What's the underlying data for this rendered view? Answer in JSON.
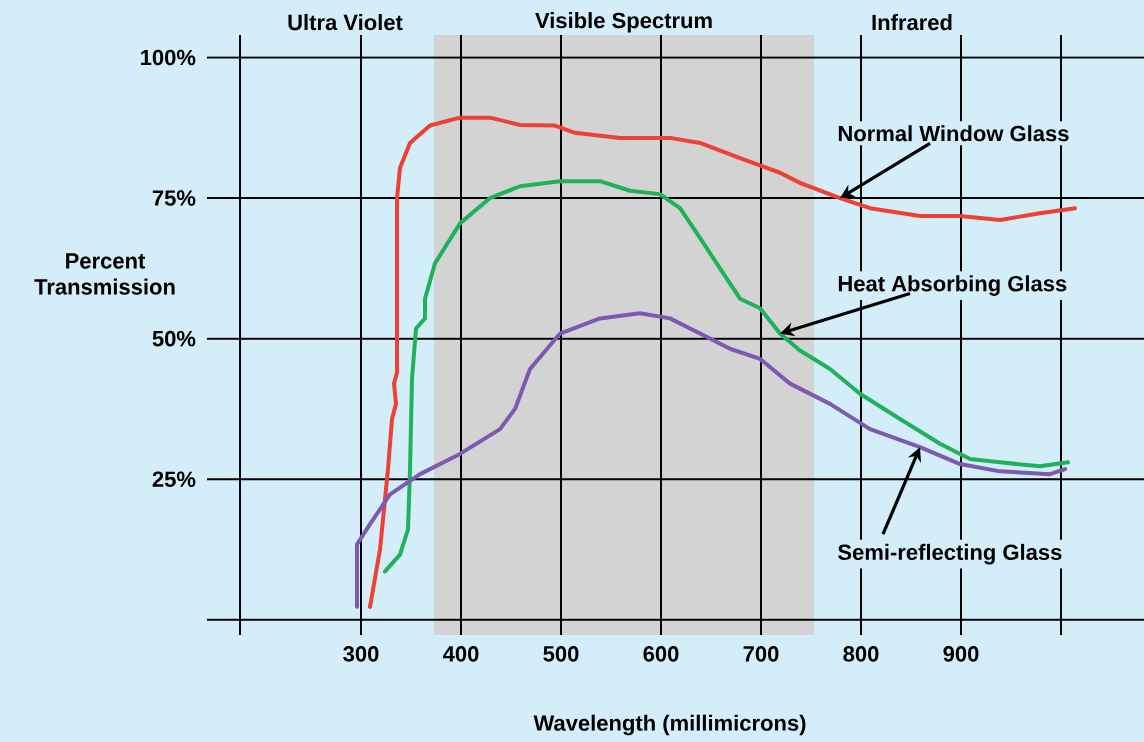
{
  "chart_data": {
    "type": "line",
    "xlabel": "Wavelength (millimicrons)",
    "ylabel": "Percent Transmission",
    "xlim": [
      146,
      1083
    ],
    "ylim": [
      -2.7,
      104
    ],
    "xticks": [
      {
        "value": 179,
        "label": null
      },
      300,
      400,
      500,
      600,
      700,
      800,
      900,
      {
        "value": 1000,
        "label": null
      }
    ],
    "yticks": [
      {
        "value": 0,
        "label": null
      },
      {
        "value": 25,
        "label": "25%"
      },
      {
        "value": 50,
        "label": "50%"
      },
      {
        "value": 75,
        "label": "75%"
      },
      {
        "value": 100,
        "label": "100%"
      }
    ],
    "grid": true,
    "marker": "none",
    "line_style": "solid",
    "bands": [
      {
        "axis": "x",
        "from": 373,
        "to": 753,
        "label": "Visible Spectrum",
        "color": "#d3d3d3"
      }
    ],
    "annotations": [
      {
        "text": "Normal Window Glass",
        "x": 779,
        "y": 75
      },
      {
        "text": "Heat Absorbing Glass",
        "x": 719,
        "y": 50.9
      },
      {
        "text": "Semi-reflecting Glass",
        "x": 859,
        "y": 30.7
      },
      "Ultra Violet",
      "Infrared"
    ],
    "series": [
      {
        "color": "#ee4035",
        "x": [
          309,
          319,
          327,
          331,
          335,
          333,
          336,
          336,
          339,
          349,
          369,
          399,
          429,
          459,
          494,
          514,
          559,
          609,
          639,
          679,
          719,
          739,
          779,
          809,
          859,
          899,
          939,
          979,
          1014
        ],
        "values": [
          2.3,
          12.5,
          26.8,
          35.7,
          38.4,
          42.0,
          44.0,
          75,
          80.4,
          84.8,
          87.9,
          89.3,
          89.3,
          88.0,
          87.9,
          86.6,
          85.7,
          85.7,
          84.8,
          82.1,
          79.5,
          77.7,
          75,
          73.2,
          71.8,
          71.8,
          71.1,
          72.3,
          73.2
        ]
      },
      {
        "color": "#1fb25a",
        "x": [
          324,
          339,
          347,
          349,
          351,
          355,
          364,
          364,
          374,
          399,
          429,
          459,
          499,
          539,
          569,
          599,
          619,
          639,
          659,
          679,
          699,
          719,
          739,
          769,
          799,
          839,
          879,
          909,
          939,
          979,
          1007
        ],
        "values": [
          8.6,
          11.6,
          16.1,
          26.8,
          42.9,
          51.8,
          53.6,
          57.1,
          63.4,
          70.5,
          75,
          77.1,
          78.0,
          78.0,
          76.3,
          75.7,
          73.2,
          67.9,
          62.5,
          57.1,
          55.4,
          50.9,
          47.9,
          44.6,
          40.2,
          35.7,
          31.3,
          28.6,
          28.0,
          27.3,
          28.0
        ]
      },
      {
        "color": "#7b5ab0",
        "x": [
          296,
          296,
          309,
          329,
          359,
          399,
          439,
          454,
          469,
          499,
          539,
          579,
          609,
          639,
          669,
          699,
          729,
          769,
          809,
          859,
          899,
          939,
          989,
          1004
        ],
        "values": [
          2.3,
          13.4,
          17.0,
          22.3,
          25.9,
          29.5,
          33.9,
          37.5,
          44.6,
          50.9,
          53.6,
          54.5,
          53.6,
          50.9,
          48.2,
          46.4,
          42.0,
          38.4,
          33.9,
          30.7,
          27.7,
          26.4,
          25.9,
          26.8
        ]
      }
    ]
  }
}
